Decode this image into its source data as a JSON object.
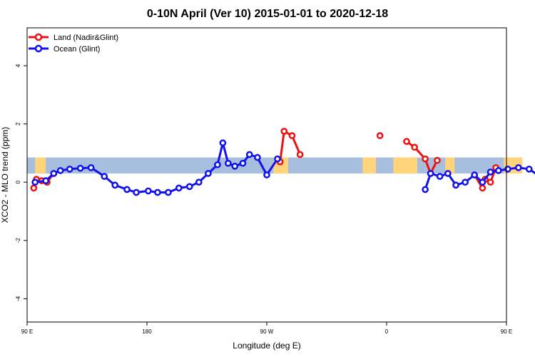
{
  "chart_data": {
    "type": "line",
    "title": "0-10N April (Ver 10)   2015-01-01 to 2020-12-18",
    "xlabel": "Longitude (deg E)",
    "ylabel": "XCO2 - MLO trend (ppm)",
    "xlim": [
      90,
      450
    ],
    "ylim": [
      -4.8,
      5.3
    ],
    "x_ticks": [
      {
        "value": 90,
        "label": "90 E"
      },
      {
        "value": 180,
        "label": "180"
      },
      {
        "value": 270,
        "label": "90 W"
      },
      {
        "value": 360,
        "label": "0"
      },
      {
        "value": 450,
        "label": "90 E"
      },
      {
        "value": 540,
        "label": "180"
      }
    ],
    "y_ticks": [
      {
        "value": -4,
        "label": "-4"
      },
      {
        "value": -2,
        "label": "-2"
      },
      {
        "value": 0,
        "label": "0"
      },
      {
        "value": 2,
        "label": "2"
      },
      {
        "value": 4,
        "label": "4"
      }
    ],
    "grid": false,
    "legend_position": "top-left",
    "background_band": {
      "y_range": [
        0.3,
        0.85
      ],
      "ocean_color": "#a8bede",
      "land_color": "#ffd47a"
    },
    "land_segments_x": [
      [
        96,
        104
      ],
      [
        275,
        286
      ],
      [
        342,
        352
      ],
      [
        365,
        383
      ],
      [
        404,
        411
      ],
      [
        448,
        452
      ],
      [
        452,
        462
      ],
      [
        491,
        500
      ]
    ],
    "series": [
      {
        "name": "Land (Nadir&Glint)",
        "color": "#ee1111",
        "segments": [
          [
            [
              95,
              -0.2
            ],
            [
              97,
              0.1
            ],
            [
              101,
              0.05
            ],
            [
              105,
              0.0
            ],
            [
              110,
              0.3
            ]
          ],
          [
            [
              280,
              0.7
            ],
            [
              283,
              1.75
            ],
            [
              289,
              1.6
            ],
            [
              295,
              0.95
            ]
          ],
          [
            [
              355,
              1.6
            ]
          ],
          [
            [
              375,
              1.4
            ],
            [
              381,
              1.2
            ],
            [
              389,
              0.8
            ],
            [
              393,
              0.3
            ],
            [
              398,
              0.75
            ]
          ],
          [
            [
              426,
              0.25
            ],
            [
              432,
              -0.2
            ]
          ],
          [
            [
              434,
              0.1
            ],
            [
              438,
              0.0
            ],
            [
              442,
              0.5
            ]
          ]
        ]
      },
      {
        "name": "Ocean (Glint)",
        "color": "#1111ee",
        "segments": [
          [
            [
              96,
              0.0
            ],
            [
              104,
              0.05
            ],
            [
              110,
              0.3
            ],
            [
              115,
              0.4
            ],
            [
              122,
              0.45
            ],
            [
              130,
              0.48
            ],
            [
              138,
              0.5
            ],
            [
              148,
              0.2
            ],
            [
              156,
              -0.1
            ],
            [
              165,
              -0.25
            ],
            [
              172,
              -0.35
            ],
            [
              181,
              -0.3
            ],
            [
              188,
              -0.35
            ],
            [
              196,
              -0.35
            ],
            [
              204,
              -0.2
            ],
            [
              212,
              -0.15
            ],
            [
              219,
              0.0
            ],
            [
              226,
              0.3
            ],
            [
              233,
              0.6
            ],
            [
              237,
              1.35
            ],
            [
              241,
              0.65
            ],
            [
              246,
              0.55
            ],
            [
              252,
              0.65
            ],
            [
              257,
              0.95
            ],
            [
              263,
              0.85
            ],
            [
              270,
              0.25
            ],
            [
              278,
              0.8
            ]
          ],
          [
            [
              389,
              -0.25
            ],
            [
              393,
              0.3
            ],
            [
              400,
              0.2
            ],
            [
              406,
              0.3
            ],
            [
              412,
              -0.1
            ],
            [
              419,
              0.0
            ],
            [
              426,
              0.25
            ],
            [
              432,
              0.0
            ],
            [
              438,
              0.35
            ],
            [
              444,
              0.4
            ],
            [
              451,
              0.45
            ],
            [
              459,
              0.5
            ],
            [
              467,
              0.45
            ],
            [
              475,
              0.2
            ],
            [
              481,
              -0.15
            ]
          ]
        ]
      }
    ]
  }
}
